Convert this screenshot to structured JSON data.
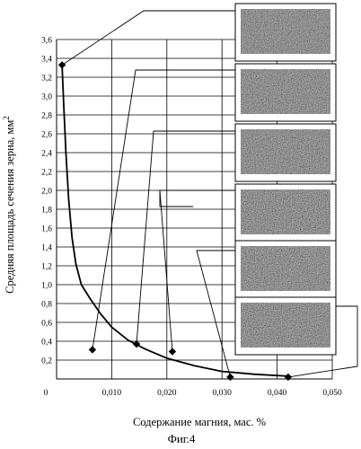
{
  "chart_data": {
    "type": "scatter",
    "title": "",
    "xlabel": "Содержание магния, мас. %",
    "ylabel": "Средняя площадь сечения зерна, мм",
    "ylabel_superscript": "2",
    "caption": "Фиг.4",
    "xlim": [
      0,
      0.05
    ],
    "ylim": [
      0,
      3.6
    ],
    "x_ticks": [
      "0",
      "0,010",
      "0,020",
      "0,030",
      "0,040",
      "0,050"
    ],
    "y_ticks": [
      "0,2",
      "0,4",
      "0,6",
      "0,8",
      "1,0",
      "1,2",
      "1,4",
      "1,6",
      "1,8",
      "2,0",
      "2,2",
      "2,4",
      "2,6",
      "2,8",
      "3,0",
      "3,2",
      "3,4",
      "3,6"
    ],
    "grid": true,
    "series": [
      {
        "marker": "diamond",
        "x": [
          0.001,
          0.0065,
          0.0145,
          0.021,
          0.0315,
          0.042
        ],
        "y": [
          3.33,
          0.31,
          0.37,
          0.29,
          0.02,
          0.02
        ]
      }
    ],
    "curve": {
      "x": [
        0.001,
        0.0013,
        0.0017,
        0.0022,
        0.0028,
        0.0035,
        0.0045,
        0.006,
        0.008,
        0.01,
        0.013,
        0.016,
        0.02,
        0.025,
        0.03,
        0.036,
        0.042
      ],
      "y": [
        3.33,
        2.9,
        2.4,
        1.9,
        1.5,
        1.22,
        1.0,
        0.86,
        0.69,
        0.55,
        0.41,
        0.32,
        0.22,
        0.14,
        0.08,
        0.05,
        0.03
      ]
    },
    "micrograph_count": 6
  }
}
